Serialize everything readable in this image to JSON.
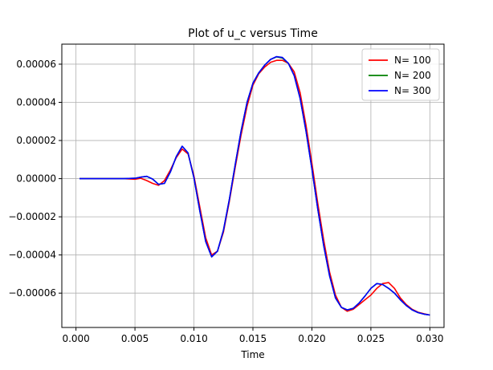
{
  "chart_data": {
    "type": "line",
    "title": "Plot of u_c versus Time",
    "xlabel": "Time",
    "ylabel": "",
    "xlim": [
      -0.0012,
      0.0312
    ],
    "ylim": [
      -7.8e-05,
      7.05e-05
    ],
    "xticks": [
      0.0,
      0.005,
      0.01,
      0.015,
      0.02,
      0.025,
      0.03
    ],
    "xtick_labels": [
      "0.000",
      "0.005",
      "0.010",
      "0.015",
      "0.020",
      "0.025",
      "0.030"
    ],
    "yticks": [
      -6e-05,
      -4e-05,
      -2e-05,
      0.0,
      2e-05,
      4e-05,
      6e-05
    ],
    "ytick_labels": [
      "−0.00006",
      "−0.00004",
      "−0.00002",
      "0.00000",
      "0.00002",
      "0.00004",
      "0.00006"
    ],
    "grid": true,
    "legend_position": "top-right",
    "series": [
      {
        "name": "N= 100",
        "color": "#ff0000",
        "x": [
          0.0003,
          0.001,
          0.002,
          0.003,
          0.004,
          0.005,
          0.0055,
          0.006,
          0.0065,
          0.007,
          0.0075,
          0.008,
          0.0085,
          0.009,
          0.0095,
          0.01,
          0.0105,
          0.011,
          0.0115,
          0.012,
          0.0125,
          0.013,
          0.0135,
          0.014,
          0.0145,
          0.015,
          0.0155,
          0.016,
          0.0165,
          0.017,
          0.0175,
          0.018,
          0.0185,
          0.019,
          0.0195,
          0.02,
          0.0205,
          0.021,
          0.0215,
          0.022,
          0.0225,
          0.023,
          0.0235,
          0.024,
          0.0245,
          0.025,
          0.0255,
          0.026,
          0.0265,
          0.027,
          0.0275,
          0.028,
          0.0285,
          0.029,
          0.0295,
          0.03
        ],
        "y": [
          0.0,
          0.0,
          0.0,
          0.0,
          0.0,
          -3e-07,
          2e-07,
          -1e-06,
          -2.5e-06,
          -3.5e-06,
          -1e-06,
          4.5e-06,
          1.1e-05,
          1.55e-05,
          1.3e-05,
          1.5e-06,
          -1.5e-05,
          -3.1e-05,
          -4e-05,
          -3.8e-05,
          -2.8e-05,
          -1.2e-05,
          6e-06,
          2.3e-05,
          3.8e-05,
          4.9e-05,
          5.5e-05,
          5.85e-05,
          6.1e-05,
          6.2e-05,
          6.2e-05,
          6.05e-05,
          5.6e-05,
          4.5e-05,
          2.8e-05,
          8e-06,
          -1.3e-05,
          -3.2e-05,
          -4.9e-05,
          -6.1e-05,
          -6.75e-05,
          -6.95e-05,
          -6.85e-05,
          -6.6e-05,
          -6.35e-05,
          -6.1e-05,
          -5.75e-05,
          -5.5e-05,
          -5.45e-05,
          -5.75e-05,
          -6.25e-05,
          -6.6e-05,
          -6.85e-05,
          -7e-05,
          -7.08e-05,
          -7.15e-05
        ]
      },
      {
        "name": "N= 200",
        "color": "#008000",
        "x": [
          0.0003,
          0.001,
          0.002,
          0.003,
          0.004,
          0.005,
          0.0055,
          0.006,
          0.0065,
          0.007,
          0.0075,
          0.008,
          0.0085,
          0.009,
          0.0095,
          0.01,
          0.0105,
          0.011,
          0.0115,
          0.012,
          0.0125,
          0.013,
          0.0135,
          0.014,
          0.0145,
          0.015,
          0.0155,
          0.016,
          0.0165,
          0.017,
          0.0175,
          0.018,
          0.0185,
          0.019,
          0.0195,
          0.02,
          0.0205,
          0.021,
          0.0215,
          0.022,
          0.0225,
          0.023,
          0.0235,
          0.024,
          0.0245,
          0.025,
          0.0255,
          0.026,
          0.0265,
          0.027,
          0.0275,
          0.028,
          0.0285,
          0.029,
          0.0295,
          0.03
        ],
        "y": [
          0.0,
          0.0,
          0.0,
          0.0,
          0.0,
          2e-07,
          8e-07,
          1.2e-06,
          -2e-07,
          -3e-06,
          -2.5e-06,
          3.5e-06,
          1.15e-05,
          1.7e-05,
          1.35e-05,
          5e-07,
          -1.7e-05,
          -3.3e-05,
          -4.1e-05,
          -3.8e-05,
          -2.7e-05,
          -1.1e-05,
          7.5e-06,
          2.5e-05,
          4e-05,
          5e-05,
          5.55e-05,
          5.95e-05,
          6.25e-05,
          6.38e-05,
          6.32e-05,
          6.05e-05,
          5.4e-05,
          4.2e-05,
          2.5e-05,
          5e-06,
          -1.6e-05,
          -3.5e-05,
          -5.1e-05,
          -6.25e-05,
          -6.75e-05,
          -6.88e-05,
          -6.8e-05,
          -6.52e-05,
          -6.15e-05,
          -5.75e-05,
          -5.5e-05,
          -5.55e-05,
          -5.75e-05,
          -6e-05,
          -6.35e-05,
          -6.65e-05,
          -6.88e-05,
          -7.02e-05,
          -7.1e-05,
          -7.15e-05
        ]
      },
      {
        "name": "N= 300",
        "color": "#0000ff",
        "x": [
          0.0003,
          0.001,
          0.002,
          0.003,
          0.004,
          0.005,
          0.0055,
          0.006,
          0.0065,
          0.007,
          0.0075,
          0.008,
          0.0085,
          0.009,
          0.0095,
          0.01,
          0.0105,
          0.011,
          0.0115,
          0.012,
          0.0125,
          0.013,
          0.0135,
          0.014,
          0.0145,
          0.015,
          0.0155,
          0.016,
          0.0165,
          0.017,
          0.0175,
          0.018,
          0.0185,
          0.019,
          0.0195,
          0.02,
          0.0205,
          0.021,
          0.0215,
          0.022,
          0.0225,
          0.023,
          0.0235,
          0.024,
          0.0245,
          0.025,
          0.0255,
          0.026,
          0.0265,
          0.027,
          0.0275,
          0.028,
          0.0285,
          0.029,
          0.0295,
          0.03
        ],
        "y": [
          0.0,
          0.0,
          0.0,
          0.0,
          0.0,
          2e-07,
          8e-07,
          1.2e-06,
          -2e-07,
          -3e-06,
          -2.5e-06,
          3.5e-06,
          1.15e-05,
          1.7e-05,
          1.35e-05,
          5e-07,
          -1.7e-05,
          -3.3e-05,
          -4.1e-05,
          -3.8e-05,
          -2.7e-05,
          -1.1e-05,
          7.5e-06,
          2.5e-05,
          4e-05,
          5e-05,
          5.55e-05,
          5.95e-05,
          6.25e-05,
          6.4e-05,
          6.35e-05,
          6.05e-05,
          5.4e-05,
          4.2e-05,
          2.5e-05,
          5e-06,
          -1.6e-05,
          -3.5e-05,
          -5.1e-05,
          -6.25e-05,
          -6.75e-05,
          -6.88e-05,
          -6.8e-05,
          -6.52e-05,
          -6.15e-05,
          -5.75e-05,
          -5.5e-05,
          -5.55e-05,
          -5.75e-05,
          -6e-05,
          -6.35e-05,
          -6.65e-05,
          -6.88e-05,
          -7.02e-05,
          -7.1e-05,
          -7.15e-05
        ]
      }
    ]
  }
}
